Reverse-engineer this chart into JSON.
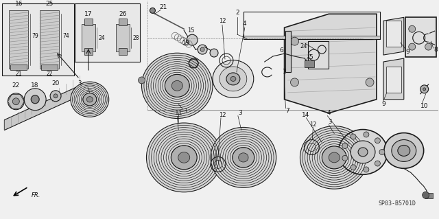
{
  "bg_color": "#f0f0f0",
  "line_color": "#1a1a1a",
  "label_color": "#111111",
  "diagram_code": "SP03-B5701D",
  "fig_w": 6.4,
  "fig_h": 3.19,
  "dpi": 100
}
